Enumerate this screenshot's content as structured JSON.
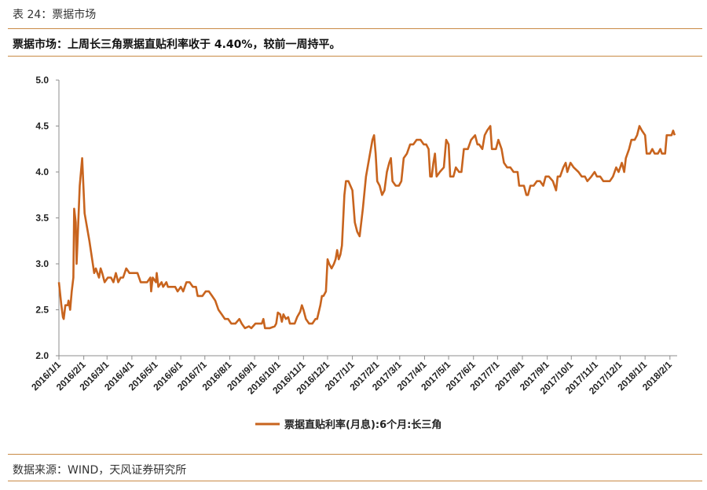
{
  "header": {
    "caption": "表 24：票据市场",
    "subtitle": "票据市场：上周长三角票据直贴利率收于 4.40%，较前一周持平。"
  },
  "footer": {
    "source": "数据来源：WIND，天风证券研究所"
  },
  "colors": {
    "rule": "#c98a45",
    "series": "#c8641e",
    "axis": "#8c8c8c"
  },
  "chart_data": {
    "type": "line",
    "title": "",
    "xlabel": "",
    "ylabel": "",
    "ylim": [
      2.0,
      5.0
    ],
    "yticks": [
      "5.0",
      "4.5",
      "4.0",
      "3.5",
      "3.0",
      "2.5",
      "2.0"
    ],
    "xlim": [
      "2016-01-01",
      "2018-02-10"
    ],
    "xticks": [
      "2016/1/1",
      "2016/2/1",
      "2016/3/1",
      "2016/4/1",
      "2016/5/1",
      "2016/6/1",
      "2016/7/1",
      "2016/8/1",
      "2016/9/1",
      "2016/10/1",
      "2016/11/1",
      "2016/12/1",
      "2017/1/1",
      "2017/2/1",
      "2017/3/1",
      "2017/4/1",
      "2017/5/1",
      "2017/6/1",
      "2017/7/1",
      "2017/8/1",
      "2017/9/1",
      "2017/10/1",
      "2017/11/1",
      "2017/12/1",
      "2018/1/1",
      "2018/2/1"
    ],
    "grid": false,
    "legend_position": "bottom",
    "series": [
      {
        "name": "票据直贴利率(月息):6个月:长三角",
        "points": [
          [
            "2016-01-01",
            2.8
          ],
          [
            "2016-01-04",
            2.55
          ],
          [
            "2016-01-06",
            2.42
          ],
          [
            "2016-01-07",
            2.4
          ],
          [
            "2016-01-09",
            2.55
          ],
          [
            "2016-01-12",
            2.55
          ],
          [
            "2016-01-13",
            2.6
          ],
          [
            "2016-01-15",
            2.5
          ],
          [
            "2016-01-17",
            2.7
          ],
          [
            "2016-01-19",
            2.85
          ],
          [
            "2016-01-20",
            3.6
          ],
          [
            "2016-01-22",
            3.45
          ],
          [
            "2016-01-23",
            3.0
          ],
          [
            "2016-01-24",
            3.2
          ],
          [
            "2016-01-27",
            3.85
          ],
          [
            "2016-01-30",
            4.15
          ],
          [
            "2016-02-02",
            3.55
          ],
          [
            "2016-02-08",
            3.25
          ],
          [
            "2016-02-14",
            2.9
          ],
          [
            "2016-02-16",
            2.95
          ],
          [
            "2016-02-18",
            2.9
          ],
          [
            "2016-02-20",
            2.85
          ],
          [
            "2016-02-22",
            2.95
          ],
          [
            "2016-02-24",
            2.9
          ],
          [
            "2016-02-27",
            2.8
          ],
          [
            "2016-03-02",
            2.85
          ],
          [
            "2016-03-06",
            2.85
          ],
          [
            "2016-03-09",
            2.8
          ],
          [
            "2016-03-12",
            2.9
          ],
          [
            "2016-03-15",
            2.8
          ],
          [
            "2016-03-18",
            2.85
          ],
          [
            "2016-03-21",
            2.85
          ],
          [
            "2016-03-25",
            2.95
          ],
          [
            "2016-03-29",
            2.9
          ],
          [
            "2016-04-03",
            2.9
          ],
          [
            "2016-04-08",
            2.9
          ],
          [
            "2016-04-12",
            2.8
          ],
          [
            "2016-04-16",
            2.8
          ],
          [
            "2016-04-20",
            2.8
          ],
          [
            "2016-04-24",
            2.85
          ],
          [
            "2016-04-25",
            2.7
          ],
          [
            "2016-04-27",
            2.85
          ],
          [
            "2016-05-01",
            2.8
          ],
          [
            "2016-05-02",
            2.9
          ],
          [
            "2016-05-04",
            2.75
          ],
          [
            "2016-05-08",
            2.8
          ],
          [
            "2016-05-10",
            2.75
          ],
          [
            "2016-05-14",
            2.8
          ],
          [
            "2016-05-16",
            2.75
          ],
          [
            "2016-05-20",
            2.75
          ],
          [
            "2016-05-25",
            2.75
          ],
          [
            "2016-05-28",
            2.7
          ],
          [
            "2016-06-01",
            2.75
          ],
          [
            "2016-06-04",
            2.7
          ],
          [
            "2016-06-08",
            2.8
          ],
          [
            "2016-06-12",
            2.8
          ],
          [
            "2016-06-16",
            2.75
          ],
          [
            "2016-06-20",
            2.75
          ],
          [
            "2016-06-22",
            2.65
          ],
          [
            "2016-06-28",
            2.65
          ],
          [
            "2016-07-02",
            2.7
          ],
          [
            "2016-07-06",
            2.7
          ],
          [
            "2016-07-10",
            2.65
          ],
          [
            "2016-07-14",
            2.6
          ],
          [
            "2016-07-18",
            2.5
          ],
          [
            "2016-07-22",
            2.45
          ],
          [
            "2016-07-26",
            2.4
          ],
          [
            "2016-07-30",
            2.4
          ],
          [
            "2016-08-03",
            2.35
          ],
          [
            "2016-08-08",
            2.35
          ],
          [
            "2016-08-13",
            2.4
          ],
          [
            "2016-08-16",
            2.35
          ],
          [
            "2016-08-20",
            2.3
          ],
          [
            "2016-08-25",
            2.32
          ],
          [
            "2016-08-28",
            2.3
          ],
          [
            "2016-09-02",
            2.35
          ],
          [
            "2016-09-06",
            2.35
          ],
          [
            "2016-09-10",
            2.35
          ],
          [
            "2016-09-12",
            2.4
          ],
          [
            "2016-09-14",
            2.3
          ],
          [
            "2016-09-20",
            2.3
          ],
          [
            "2016-09-26",
            2.32
          ],
          [
            "2016-09-28",
            2.35
          ],
          [
            "2016-09-30",
            2.47
          ],
          [
            "2016-10-03",
            2.45
          ],
          [
            "2016-10-05",
            2.37
          ],
          [
            "2016-10-07",
            2.45
          ],
          [
            "2016-10-10",
            2.4
          ],
          [
            "2016-10-13",
            2.42
          ],
          [
            "2016-10-15",
            2.35
          ],
          [
            "2016-10-18",
            2.35
          ],
          [
            "2016-10-21",
            2.35
          ],
          [
            "2016-10-24",
            2.42
          ],
          [
            "2016-10-28",
            2.48
          ],
          [
            "2016-10-30",
            2.55
          ],
          [
            "2016-11-01",
            2.5
          ],
          [
            "2016-11-04",
            2.4
          ],
          [
            "2016-11-08",
            2.35
          ],
          [
            "2016-11-12",
            2.35
          ],
          [
            "2016-11-16",
            2.4
          ],
          [
            "2016-11-18",
            2.4
          ],
          [
            "2016-11-22",
            2.55
          ],
          [
            "2016-11-24",
            2.65
          ],
          [
            "2016-11-26",
            2.65
          ],
          [
            "2016-11-29",
            2.7
          ],
          [
            "2016-12-01",
            3.05
          ],
          [
            "2016-12-03",
            3.0
          ],
          [
            "2016-12-06",
            2.95
          ],
          [
            "2016-12-09",
            3.0
          ],
          [
            "2016-12-11",
            3.05
          ],
          [
            "2016-12-13",
            3.15
          ],
          [
            "2016-12-15",
            3.05
          ],
          [
            "2016-12-17",
            3.1
          ],
          [
            "2016-12-19",
            3.2
          ],
          [
            "2016-12-22",
            3.75
          ],
          [
            "2016-12-24",
            3.9
          ],
          [
            "2016-12-27",
            3.9
          ],
          [
            "2017-01-01",
            3.8
          ],
          [
            "2017-01-04",
            3.45
          ],
          [
            "2017-01-07",
            3.35
          ],
          [
            "2017-01-10",
            3.3
          ],
          [
            "2017-01-14",
            3.6
          ],
          [
            "2017-01-18",
            3.95
          ],
          [
            "2017-01-22",
            4.15
          ],
          [
            "2017-01-26",
            4.35
          ],
          [
            "2017-01-28",
            4.4
          ],
          [
            "2017-01-30",
            4.2
          ],
          [
            "2017-02-01",
            3.9
          ],
          [
            "2017-02-04",
            3.85
          ],
          [
            "2017-02-07",
            3.75
          ],
          [
            "2017-02-10",
            3.8
          ],
          [
            "2017-02-13",
            4.0
          ],
          [
            "2017-02-16",
            4.1
          ],
          [
            "2017-02-18",
            4.15
          ],
          [
            "2017-02-20",
            3.9
          ],
          [
            "2017-02-24",
            3.85
          ],
          [
            "2017-02-28",
            3.85
          ],
          [
            "2017-03-03",
            3.9
          ],
          [
            "2017-03-06",
            4.15
          ],
          [
            "2017-03-10",
            4.2
          ],
          [
            "2017-03-14",
            4.3
          ],
          [
            "2017-03-18",
            4.3
          ],
          [
            "2017-03-22",
            4.35
          ],
          [
            "2017-03-27",
            4.35
          ],
          [
            "2017-03-31",
            4.3
          ],
          [
            "2017-04-03",
            4.3
          ],
          [
            "2017-04-06",
            4.25
          ],
          [
            "2017-04-08",
            3.95
          ],
          [
            "2017-04-10",
            3.95
          ],
          [
            "2017-04-12",
            4.1
          ],
          [
            "2017-04-14",
            4.2
          ],
          [
            "2017-04-16",
            3.95
          ],
          [
            "2017-04-20",
            4.0
          ],
          [
            "2017-04-25",
            4.05
          ],
          [
            "2017-04-28",
            4.35
          ],
          [
            "2017-05-01",
            4.3
          ],
          [
            "2017-05-03",
            3.95
          ],
          [
            "2017-05-07",
            3.95
          ],
          [
            "2017-05-10",
            4.05
          ],
          [
            "2017-05-14",
            4.0
          ],
          [
            "2017-05-17",
            4.0
          ],
          [
            "2017-05-20",
            4.25
          ],
          [
            "2017-05-25",
            4.25
          ],
          [
            "2017-05-29",
            4.35
          ],
          [
            "2017-06-03",
            4.4
          ],
          [
            "2017-06-06",
            4.3
          ],
          [
            "2017-06-08",
            4.3
          ],
          [
            "2017-06-12",
            4.25
          ],
          [
            "2017-06-15",
            4.4
          ],
          [
            "2017-06-18",
            4.45
          ],
          [
            "2017-06-22",
            4.5
          ],
          [
            "2017-06-24",
            4.25
          ],
          [
            "2017-06-29",
            4.25
          ],
          [
            "2017-07-02",
            4.35
          ],
          [
            "2017-07-06",
            4.25
          ],
          [
            "2017-07-09",
            4.1
          ],
          [
            "2017-07-13",
            4.05
          ],
          [
            "2017-07-17",
            4.05
          ],
          [
            "2017-07-21",
            4.0
          ],
          [
            "2017-07-26",
            4.0
          ],
          [
            "2017-07-28",
            3.85
          ],
          [
            "2017-08-03",
            3.85
          ],
          [
            "2017-08-06",
            3.75
          ],
          [
            "2017-08-08",
            3.75
          ],
          [
            "2017-08-11",
            3.85
          ],
          [
            "2017-08-15",
            3.85
          ],
          [
            "2017-08-19",
            3.9
          ],
          [
            "2017-08-23",
            3.9
          ],
          [
            "2017-08-27",
            3.85
          ],
          [
            "2017-08-30",
            3.95
          ],
          [
            "2017-09-03",
            3.95
          ],
          [
            "2017-09-08",
            3.9
          ],
          [
            "2017-09-12",
            3.8
          ],
          [
            "2017-09-14",
            3.95
          ],
          [
            "2017-09-17",
            3.95
          ],
          [
            "2017-09-21",
            4.05
          ],
          [
            "2017-09-24",
            4.1
          ],
          [
            "2017-09-26",
            4.0
          ],
          [
            "2017-09-30",
            4.1
          ],
          [
            "2017-10-04",
            4.05
          ],
          [
            "2017-10-10",
            4.0
          ],
          [
            "2017-10-14",
            3.95
          ],
          [
            "2017-10-18",
            3.95
          ],
          [
            "2017-10-21",
            3.9
          ],
          [
            "2017-10-26",
            3.95
          ],
          [
            "2017-10-30",
            4.0
          ],
          [
            "2017-11-02",
            3.95
          ],
          [
            "2017-11-06",
            3.95
          ],
          [
            "2017-11-10",
            3.9
          ],
          [
            "2017-11-14",
            3.9
          ],
          [
            "2017-11-18",
            3.9
          ],
          [
            "2017-11-22",
            3.95
          ],
          [
            "2017-11-26",
            4.05
          ],
          [
            "2017-11-29",
            4.0
          ],
          [
            "2017-12-03",
            4.1
          ],
          [
            "2017-12-06",
            4.0
          ],
          [
            "2017-12-08",
            4.15
          ],
          [
            "2017-12-12",
            4.25
          ],
          [
            "2017-12-15",
            4.35
          ],
          [
            "2017-12-19",
            4.35
          ],
          [
            "2017-12-22",
            4.4
          ],
          [
            "2017-12-25",
            4.5
          ],
          [
            "2017-12-28",
            4.45
          ],
          [
            "2018-01-01",
            4.4
          ],
          [
            "2018-01-03",
            4.2
          ],
          [
            "2018-01-07",
            4.2
          ],
          [
            "2018-01-10",
            4.25
          ],
          [
            "2018-01-13",
            4.2
          ],
          [
            "2018-01-17",
            4.2
          ],
          [
            "2018-01-20",
            4.25
          ],
          [
            "2018-01-22",
            4.2
          ],
          [
            "2018-01-26",
            4.2
          ],
          [
            "2018-01-28",
            4.4
          ],
          [
            "2018-01-31",
            4.4
          ],
          [
            "2018-02-03",
            4.4
          ],
          [
            "2018-02-05",
            4.45
          ],
          [
            "2018-02-07",
            4.4
          ]
        ]
      }
    ]
  }
}
